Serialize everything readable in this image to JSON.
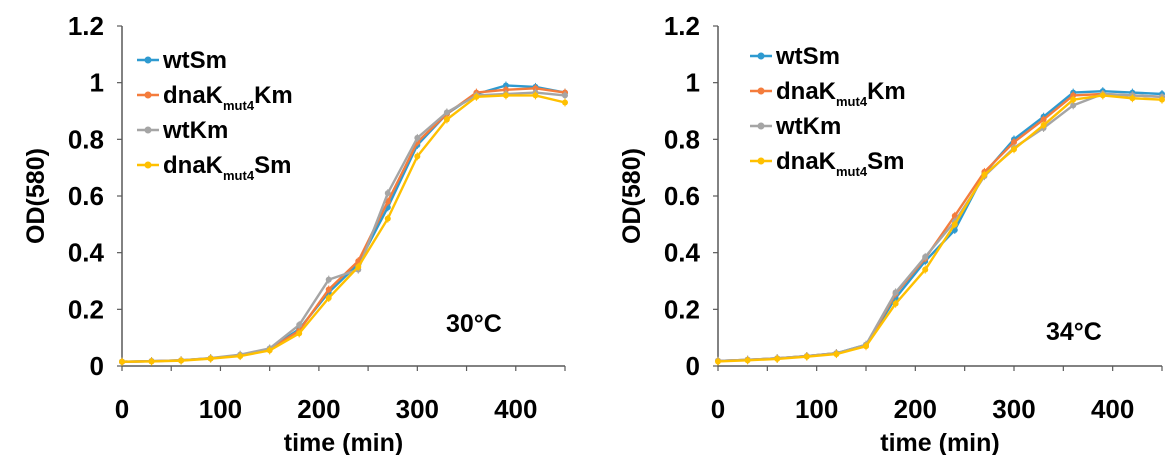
{
  "chart_data": [
    {
      "type": "line",
      "xlabel": "time (min)",
      "ylabel": "OD(580)",
      "xlim": [
        0,
        450
      ],
      "ylim": [
        0,
        1.2
      ],
      "xticks": [
        "0",
        "100",
        "200",
        "300",
        "400"
      ],
      "yticks": [
        "0",
        "0.2",
        "0.4",
        "0.6",
        "0.8",
        "1",
        "1.2"
      ],
      "annotation": "30°C",
      "legend_position": "top-left",
      "grid": false,
      "x": [
        0,
        30,
        60,
        90,
        120,
        150,
        180,
        210,
        240,
        270,
        300,
        330,
        360,
        390,
        420,
        450
      ],
      "series": [
        {
          "name": "wtSm",
          "name_main": "wtSm",
          "name_sub": "",
          "name_suffix": "",
          "color": "#2E9AD0",
          "values": [
            0.015,
            0.017,
            0.02,
            0.027,
            0.037,
            0.06,
            0.13,
            0.26,
            0.36,
            0.56,
            0.78,
            0.89,
            0.96,
            0.99,
            0.985,
            0.965
          ]
        },
        {
          "name": "dnaKmut4Km",
          "name_main": "dnaK",
          "name_sub": "mut4",
          "name_suffix": "Km",
          "color": "#F47C3C",
          "values": [
            0.015,
            0.017,
            0.02,
            0.027,
            0.037,
            0.058,
            0.125,
            0.27,
            0.37,
            0.58,
            0.79,
            0.89,
            0.965,
            0.975,
            0.98,
            0.965
          ]
        },
        {
          "name": "wtKm",
          "name_main": "wtKm",
          "name_sub": "",
          "name_suffix": "",
          "color": "#A5A5A5",
          "values": [
            0.015,
            0.017,
            0.02,
            0.028,
            0.04,
            0.062,
            0.145,
            0.305,
            0.34,
            0.61,
            0.805,
            0.895,
            0.955,
            0.96,
            0.965,
            0.955
          ]
        },
        {
          "name": "dnaKmut4Sm",
          "name_main": "dnaK",
          "name_sub": "mut4",
          "name_suffix": "Sm",
          "color": "#FFC000",
          "values": [
            0.015,
            0.016,
            0.019,
            0.026,
            0.035,
            0.055,
            0.115,
            0.24,
            0.35,
            0.52,
            0.74,
            0.87,
            0.95,
            0.955,
            0.955,
            0.93
          ]
        }
      ]
    },
    {
      "type": "line",
      "xlabel": "time (min)",
      "ylabel": "OD(580)",
      "xlim": [
        0,
        450
      ],
      "ylim": [
        0,
        1.2
      ],
      "xticks": [
        "0",
        "100",
        "200",
        "300",
        "400"
      ],
      "yticks": [
        "0",
        "0.2",
        "0.4",
        "0.6",
        "0.8",
        "1",
        "1.2"
      ],
      "annotation": "34°C",
      "legend_position": "top-left",
      "grid": false,
      "x": [
        0,
        30,
        60,
        90,
        120,
        150,
        180,
        210,
        240,
        270,
        300,
        330,
        360,
        390,
        420,
        450
      ],
      "series": [
        {
          "name": "wtSm",
          "name_main": "wtSm",
          "name_sub": "",
          "name_suffix": "",
          "color": "#2E9AD0",
          "values": [
            0.018,
            0.022,
            0.027,
            0.035,
            0.045,
            0.075,
            0.24,
            0.37,
            0.48,
            0.68,
            0.8,
            0.88,
            0.965,
            0.97,
            0.965,
            0.96
          ]
        },
        {
          "name": "dnaKmut4Km",
          "name_main": "dnaK",
          "name_sub": "mut4",
          "name_suffix": "Km",
          "color": "#F47C3C",
          "values": [
            0.018,
            0.022,
            0.027,
            0.035,
            0.045,
            0.07,
            0.255,
            0.38,
            0.53,
            0.685,
            0.79,
            0.87,
            0.955,
            0.96,
            0.955,
            0.95
          ]
        },
        {
          "name": "wtKm",
          "name_main": "wtKm",
          "name_sub": "",
          "name_suffix": "",
          "color": "#A5A5A5",
          "values": [
            0.018,
            0.022,
            0.027,
            0.035,
            0.045,
            0.075,
            0.26,
            0.385,
            0.51,
            0.67,
            0.77,
            0.84,
            0.92,
            0.96,
            0.955,
            0.95
          ]
        },
        {
          "name": "dnaKmut4Sm",
          "name_main": "dnaK",
          "name_sub": "mut4",
          "name_suffix": "Sm",
          "color": "#FFC000",
          "values": [
            0.016,
            0.02,
            0.025,
            0.033,
            0.042,
            0.07,
            0.22,
            0.34,
            0.5,
            0.675,
            0.765,
            0.85,
            0.94,
            0.955,
            0.945,
            0.94
          ]
        }
      ]
    }
  ]
}
